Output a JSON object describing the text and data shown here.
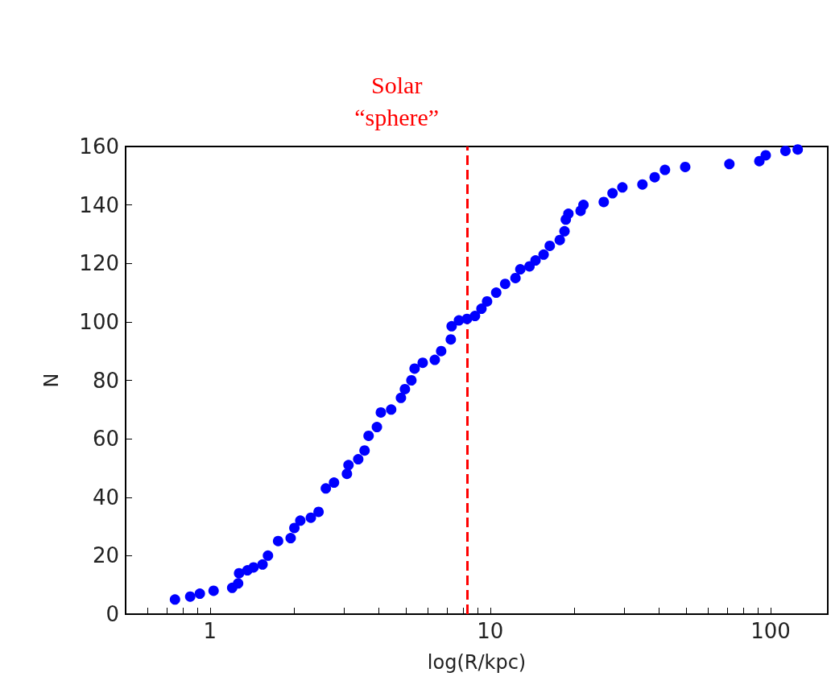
{
  "chart_data": {
    "type": "scatter",
    "xlabel": "log(R/kpc)",
    "ylabel": "N",
    "log": "x",
    "marker": "circle",
    "grid": false,
    "xlim": [
      0.5,
      160
    ],
    "ylim": [
      0,
      160
    ],
    "xticks": [
      {
        "value": 0.6,
        "label": null
      },
      {
        "value": 0.7,
        "label": null
      },
      {
        "value": 0.8,
        "label": null
      },
      {
        "value": 0.9,
        "label": null
      },
      1,
      {
        "value": 2,
        "label": null
      },
      {
        "value": 3,
        "label": null
      },
      {
        "value": 4,
        "label": null
      },
      {
        "value": 5,
        "label": null
      },
      {
        "value": 6,
        "label": null
      },
      {
        "value": 7,
        "label": null
      },
      {
        "value": 8,
        "label": null
      },
      {
        "value": 9,
        "label": null
      },
      10,
      {
        "value": 20,
        "label": null
      },
      {
        "value": 30,
        "label": null
      },
      {
        "value": 40,
        "label": null
      },
      {
        "value": 50,
        "label": null
      },
      {
        "value": 60,
        "label": null
      },
      {
        "value": 70,
        "label": null
      },
      {
        "value": 80,
        "label": null
      },
      {
        "value": 90,
        "label": null
      },
      100
    ],
    "yticks": [
      0,
      20,
      40,
      60,
      80,
      100,
      120,
      140,
      160
    ],
    "ref_lines": [
      {
        "axis": "x",
        "value": 8.3,
        "label": "Solar\n“sphere”",
        "color": "#ff0000",
        "line_style": "dashed"
      }
    ],
    "series": [
      {
        "color": "#0000ff",
        "x": [
          0.75,
          0.85,
          0.92,
          1.03,
          1.2,
          1.26,
          1.27,
          1.36,
          1.43,
          1.54,
          1.61,
          1.75,
          1.94,
          2.0,
          2.1,
          2.29,
          2.44,
          2.59,
          2.77,
          3.08,
          3.12,
          3.38,
          3.56,
          3.68,
          3.94,
          4.07,
          4.43,
          4.8,
          4.96,
          5.23,
          5.37,
          5.74,
          6.34,
          6.68,
          7.23,
          7.28,
          7.73,
          8.26,
          8.82,
          9.3,
          9.74,
          10.5,
          11.3,
          12.3,
          12.8,
          13.8,
          14.5,
          15.5,
          16.3,
          17.7,
          18.4,
          18.6,
          19.0,
          21.0,
          21.5,
          25.4,
          27.3,
          29.6,
          34.9,
          38.6,
          42.0,
          49.6,
          71.3,
          91.2,
          96.1,
          113,
          125
        ],
        "values": [
          5,
          6,
          7,
          8,
          9,
          10.5,
          14,
          15,
          16,
          17,
          20,
          25,
          26,
          29.5,
          32,
          33,
          35,
          43,
          45,
          48,
          51,
          53,
          56,
          61,
          64,
          69,
          70,
          74,
          77,
          80,
          84,
          86,
          87,
          90,
          94,
          98.5,
          100.5,
          101,
          102,
          104.5,
          107,
          110,
          113,
          115,
          118,
          119,
          121,
          123,
          126,
          128,
          131,
          135,
          137,
          138,
          140,
          141,
          144,
          146,
          147,
          149.5,
          152,
          153,
          154,
          155,
          157,
          158.5,
          159
        ]
      }
    ]
  }
}
